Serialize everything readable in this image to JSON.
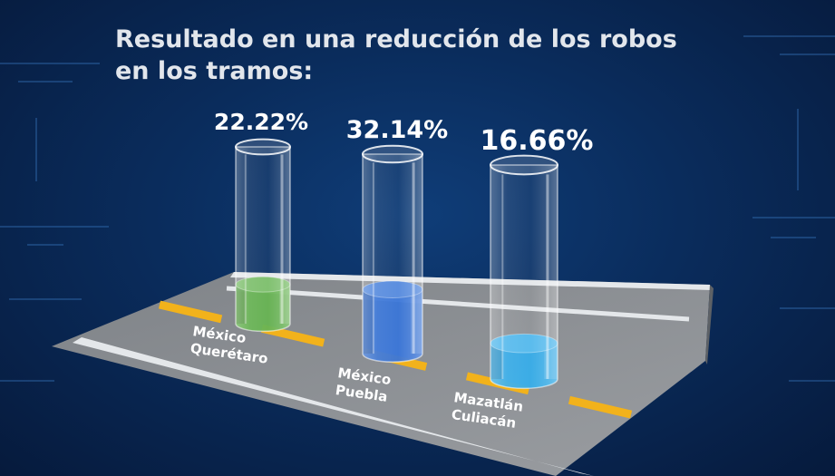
{
  "title_lines": [
    "Resultado en una reducción de los robos",
    "en los tramos:"
  ],
  "colors": {
    "road": "#8c8f93",
    "road_edge": "#dfe3e6",
    "lane_stripe": "#f2b21b",
    "background": "#0a2c5c"
  },
  "chart_data": {
    "type": "bar",
    "title": "Resultado en una reducción de los robos en los tramos:",
    "categories": [
      [
        "México",
        "Querétaro"
      ],
      [
        "México",
        "Puebla"
      ],
      [
        "Mazatlán",
        "Culiacán"
      ]
    ],
    "values": [
      22.22,
      32.14,
      16.66
    ],
    "value_labels": [
      "22.22%",
      "32.14%",
      "16.66%"
    ],
    "fill_colors": [
      "#5fb04a",
      "#2f6fd6",
      "#2ca9e8"
    ],
    "ylim": [
      0,
      100
    ]
  }
}
